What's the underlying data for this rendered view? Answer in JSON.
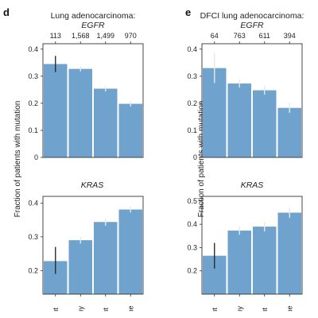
{
  "colors": {
    "bar": "#6fa3cd",
    "err_dark": "#2b2b2b",
    "err_light": "#e8e8e8"
  },
  "panels": [
    {
      "label": "d",
      "title_line1": "Lung adenocarcinoma:",
      "title_line2": "EGFR"
    },
    {
      "label": "e",
      "title_line1": "DFCI lung adenocarcinoma:",
      "title_line2": "EGFR"
    }
  ],
  "ylabel": "Fraction of patients with mutation",
  "chart_data": [
    {
      "type": "bar",
      "panel": "d",
      "gene": "EGFR",
      "title": "Lung adenocarcinoma: EGFR",
      "top_labels": [
        "113",
        "1,568",
        "1,499",
        "970"
      ],
      "values": [
        0.345,
        0.327,
        0.254,
        0.198
      ],
      "err": [
        [
          0.315,
          0.375
        ],
        [
          0.318,
          0.336
        ],
        [
          0.244,
          0.264
        ],
        [
          0.188,
          0.208
        ]
      ],
      "err_style": [
        "dark",
        "light",
        "light",
        "light"
      ],
      "yticks": [
        0,
        0.1,
        0.2,
        0.3,
        0.4
      ],
      "ylim": [
        0,
        0.42
      ],
      "grid": false
    },
    {
      "type": "bar",
      "panel": "d",
      "gene": "KRAS",
      "title": "KRAS",
      "values": [
        0.228,
        0.29,
        0.344,
        0.381
      ],
      "err": [
        [
          0.19,
          0.27
        ],
        [
          0.28,
          0.3
        ],
        [
          0.333,
          0.355
        ],
        [
          0.372,
          0.39
        ]
      ],
      "err_style": [
        "dark",
        "light",
        "light",
        "light"
      ],
      "yticks": [
        0.2,
        0.3,
        0.4
      ],
      "ylim": [
        0.13,
        0.42
      ],
      "grid": false
    },
    {
      "type": "bar",
      "panel": "e",
      "gene": "EGFR",
      "title": "DFCI lung adenocarcinoma: EGFR",
      "top_labels": [
        "64",
        "763",
        "611",
        "394"
      ],
      "values": [
        0.33,
        0.273,
        0.248,
        0.183
      ],
      "err": [
        [
          0.275,
          0.385
        ],
        [
          0.258,
          0.288
        ],
        [
          0.232,
          0.264
        ],
        [
          0.165,
          0.201
        ]
      ],
      "err_style": [
        "light",
        "light",
        "light",
        "light"
      ],
      "yticks": [
        0,
        0.1,
        0.2,
        0.3,
        0.4
      ],
      "ylim": [
        0,
        0.42
      ],
      "grid": false
    },
    {
      "type": "bar",
      "panel": "e",
      "gene": "KRAS",
      "title": "KRAS",
      "values": [
        0.265,
        0.373,
        0.39,
        0.45
      ],
      "err": [
        [
          0.21,
          0.32
        ],
        [
          0.355,
          0.391
        ],
        [
          0.37,
          0.41
        ],
        [
          0.428,
          0.472
        ]
      ],
      "err_style": [
        "dark",
        "light",
        "light",
        "light"
      ],
      "yticks": [
        0.2,
        0.3,
        0.4,
        0.5
      ],
      "ylim": [
        0.1,
        0.52
      ],
      "grid": false
    }
  ],
  "x_tick_fragments": [
    "ıt",
    "ıy",
    "ıt",
    "ıe"
  ]
}
